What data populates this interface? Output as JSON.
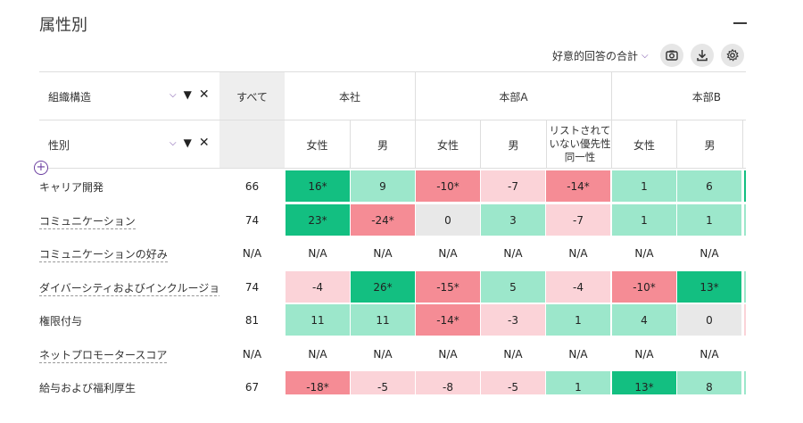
{
  "panel": {
    "title": "属性別"
  },
  "toolbar": {
    "metric_label": "好意的回答の合計",
    "icons": [
      "camera-icon",
      "download-icon",
      "gear-icon"
    ]
  },
  "selectors": {
    "row1": {
      "label": "組織構造"
    },
    "row2": {
      "label": "性別"
    }
  },
  "header": {
    "all_label": "すべて",
    "groups": [
      {
        "label": "本社"
      },
      {
        "label": "本部A"
      },
      {
        "label": "本部B"
      }
    ],
    "columns": [
      "女性",
      "男",
      "女性",
      "男",
      "リストされていない優先性同一性",
      "女性",
      "男"
    ]
  },
  "rows": [
    {
      "label": "キャリア開発",
      "all": "66",
      "values": [
        "16*",
        "9",
        "-10*",
        "-7",
        "-14*",
        "1",
        "6"
      ],
      "levels": [
        "g3",
        "g2",
        "r3",
        "r2",
        "r3",
        "g2",
        "g2"
      ],
      "edge": "g3"
    },
    {
      "label": "コミュニケーション",
      "all": "74",
      "values": [
        "23*",
        "-24*",
        "0",
        "3",
        "-7",
        "1",
        "1"
      ],
      "levels": [
        "g3",
        "r3",
        "n",
        "g2",
        "r2",
        "g2",
        "g2"
      ],
      "edge": "g2"
    },
    {
      "label": "コミュニケーションの好み",
      "all": "N/A",
      "values": [
        "N/A",
        "N/A",
        "N/A",
        "N/A",
        "N/A",
        "N/A",
        "N/A"
      ],
      "levels": [
        "na",
        "na",
        "na",
        "na",
        "na",
        "na",
        "na"
      ],
      "edge": "na"
    },
    {
      "label": "ダイバーシティおよびインクルージョン",
      "all": "74",
      "values": [
        "-4",
        "26*",
        "-15*",
        "5",
        "-4",
        "-10*",
        "13*"
      ],
      "levels": [
        "r2",
        "g3",
        "r3",
        "g2",
        "r2",
        "r3",
        "g3"
      ],
      "edge": "g2"
    },
    {
      "label": "権限付与",
      "all": "81",
      "values": [
        "11",
        "11",
        "-14*",
        "-3",
        "1",
        "4",
        "0"
      ],
      "levels": [
        "g2",
        "g2",
        "r3",
        "r2",
        "g2",
        "g2",
        "n"
      ],
      "edge": "r2"
    },
    {
      "label": "ネットプロモータースコア",
      "all": "N/A",
      "values": [
        "N/A",
        "N/A",
        "N/A",
        "N/A",
        "N/A",
        "N/A",
        "N/A"
      ],
      "levels": [
        "na",
        "na",
        "na",
        "na",
        "na",
        "na",
        "na"
      ],
      "edge": "na"
    },
    {
      "label": "給与および福利厚生",
      "all": "67",
      "values": [
        "-18*",
        "-5",
        "-8",
        "-5",
        "1",
        "13*",
        "8"
      ],
      "levels": [
        "r3",
        "r2",
        "r2",
        "r2",
        "g2",
        "g3",
        "g2"
      ],
      "edge": "g2"
    }
  ]
}
